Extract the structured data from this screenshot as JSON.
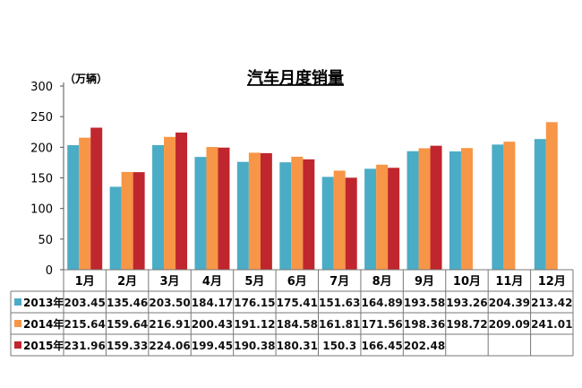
{
  "chart_data": {
    "type": "bar",
    "title": "汽车月度销量",
    "unit_label": "（万辆）",
    "categories": [
      "1月",
      "2月",
      "3月",
      "4月",
      "5月",
      "6月",
      "7月",
      "8月",
      "9月",
      "10月",
      "11月",
      "12月"
    ],
    "yticks": [
      "0",
      "50",
      "100",
      "150",
      "200",
      "250",
      "300"
    ],
    "ylim": [
      0,
      300
    ],
    "series": [
      {
        "name": "2013年",
        "color": "#4bacc6",
        "values": [
          203.45,
          135.46,
          203.5,
          184.17,
          176.15,
          175.41,
          151.63,
          164.89,
          193.58,
          193.26,
          204.39,
          213.42
        ],
        "labels": [
          "203.45",
          "135.46",
          "203.50",
          "184.17",
          "176.15",
          "175.41",
          "151.63",
          "164.89",
          "193.58",
          "193.26",
          "204.39",
          "213.42"
        ]
      },
      {
        "name": "2014年",
        "color": "#f79646",
        "values": [
          215.64,
          159.64,
          216.91,
          200.43,
          191.12,
          184.58,
          161.81,
          171.56,
          198.36,
          198.72,
          209.09,
          241.01
        ],
        "labels": [
          "215.64",
          "159.64",
          "216.91",
          "200.43",
          "191.12",
          "184.58",
          "161.81",
          "171.56",
          "198.36",
          "198.72",
          "209.09",
          "241.01"
        ]
      },
      {
        "name": "2015年",
        "color": "#c0262d",
        "values": [
          231.96,
          159.33,
          224.06,
          199.45,
          190.38,
          180.31,
          150.3,
          166.45,
          202.48,
          null,
          null,
          null
        ],
        "labels": [
          "231.96",
          "159.33",
          "224.06",
          "199.45",
          "190.38",
          "180.31",
          "150.3",
          "166.45",
          "202.48",
          "",
          "",
          ""
        ]
      }
    ]
  }
}
